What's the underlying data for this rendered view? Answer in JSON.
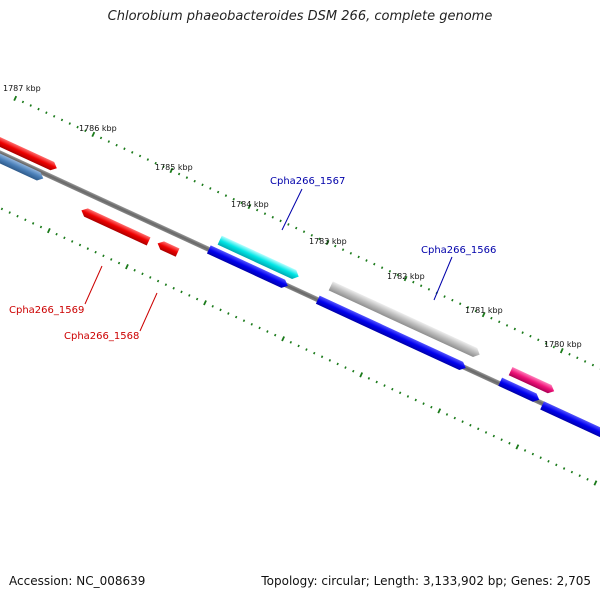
{
  "title": "Chlorobium phaeobacteroides DSM 266, complete genome",
  "footer": {
    "accession": "Accession: NC_008639",
    "summary": "Topology: circular; Length: 3,133,902 bp; Genes: 2,705"
  },
  "kbp_labels": [
    "1787 kbp",
    "1786 kbp",
    "1785 kbp",
    "1784 kbp",
    "1783 kbp",
    "1782 kbp",
    "1781 kbp",
    "1780 kbp"
  ],
  "gene_labels": [
    {
      "id": "gene-label-cpha266-1567",
      "text": "Cpha266_1567",
      "color": "#0000aa"
    },
    {
      "id": "gene-label-cpha266-1566",
      "text": "Cpha266_1566",
      "color": "#0000aa"
    },
    {
      "id": "gene-label-cpha266-1569",
      "text": "Cpha266_1569",
      "color": "#cc0000"
    },
    {
      "id": "gene-label-cpha266-1568",
      "text": "Cpha266_1568",
      "color": "#cc0000"
    }
  ],
  "colors": {
    "backbone": "#777777",
    "tick": "#1a7a1a",
    "red": "#ee0000",
    "steel_blue": "#4a7fb8",
    "cyan": "#00e5e5",
    "blue": "#0000ee",
    "gray": "#bbbbbb",
    "pink": "#ee1177"
  }
}
